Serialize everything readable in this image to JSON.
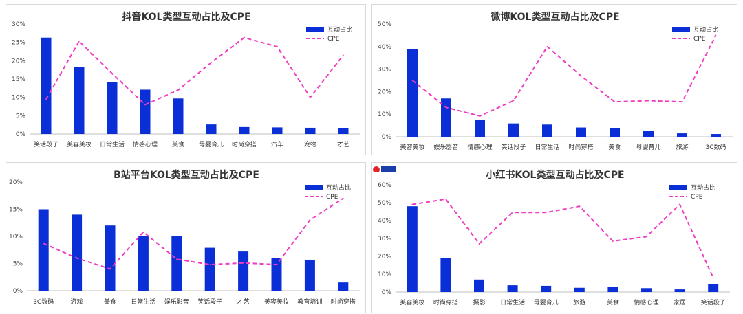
{
  "colors": {
    "bar": "#0a2fd6",
    "line": "#f03cc0",
    "axis": "#bfbfbf"
  },
  "legend": {
    "bar_label": "互动占比",
    "line_label": "CPE"
  },
  "chart_data": [
    {
      "type": "bar",
      "title": "抖音KOL类型互动占比及CPE",
      "categories": [
        "笑话段子",
        "美容美妆",
        "日常生活",
        "情感心理",
        "美食",
        "母婴育儿",
        "时尚穿搭",
        "汽车",
        "宠物",
        "才艺"
      ],
      "yticks": [
        "0%",
        "5%",
        "10%",
        "15%",
        "20%",
        "25%",
        "30%"
      ],
      "ylim": [
        0,
        30
      ],
      "series": [
        {
          "name": "互动占比",
          "type": "bar",
          "values": [
            26.3,
            18.3,
            14.2,
            12.1,
            9.7,
            2.6,
            1.9,
            1.8,
            1.7,
            1.6
          ]
        },
        {
          "name": "CPE",
          "type": "line",
          "values": [
            9.5,
            25.3,
            16.5,
            8.0,
            12.0,
            19.5,
            26.3,
            23.8,
            10.0,
            21.5
          ]
        }
      ]
    },
    {
      "type": "bar",
      "title": "微博KOL类型互动占比及CPE",
      "categories": [
        "美容美妆",
        "娱乐影音",
        "情感心理",
        "笑话段子",
        "日常生活",
        "时尚穿搭",
        "美食",
        "母婴育儿",
        "旅游",
        "3C数码"
      ],
      "yticks": [
        "0%",
        "10%",
        "20%",
        "30%",
        "40%",
        "50%"
      ],
      "ylim": [
        0,
        50
      ],
      "series": [
        {
          "name": "互动占比",
          "type": "bar",
          "values": [
            39.0,
            17.0,
            7.6,
            5.9,
            5.4,
            4.1,
            3.9,
            2.5,
            1.5,
            1.2
          ]
        },
        {
          "name": "CPE",
          "type": "line",
          "values": [
            25.0,
            13.0,
            9.2,
            16.0,
            40.0,
            27.0,
            15.5,
            16.0,
            15.5,
            45.0
          ]
        }
      ]
    },
    {
      "type": "bar",
      "title": "B站平台KOL类型互动占比及CPE",
      "categories": [
        "3C数码",
        "游戏",
        "美食",
        "日常生活",
        "娱乐影音",
        "笑话段子",
        "才艺",
        "美容美妆",
        "教育培训",
        "时尚穿搭"
      ],
      "yticks": [
        "0%",
        "5%",
        "10%",
        "15%",
        "20%"
      ],
      "ylim": [
        0,
        20
      ],
      "series": [
        {
          "name": "互动占比",
          "type": "bar",
          "values": [
            15.0,
            14.0,
            12.0,
            10.0,
            10.0,
            7.9,
            7.2,
            6.0,
            5.7,
            1.5
          ]
        },
        {
          "name": "CPE",
          "type": "line",
          "values": [
            8.7,
            6.0,
            4.0,
            10.8,
            5.8,
            4.8,
            5.1,
            4.8,
            13.0,
            17.0
          ]
        }
      ]
    },
    {
      "type": "bar",
      "title": "小红书KOL类型互动占比及CPE",
      "categories": [
        "美容美妆",
        "时尚穿搭",
        "摄影",
        "日常生活",
        "母婴育儿",
        "旅游",
        "美食",
        "情感心理",
        "家居",
        "笑话段子"
      ],
      "yticks": [
        "0%",
        "10%",
        "20%",
        "30%",
        "40%",
        "50%",
        "60%"
      ],
      "ylim": [
        0,
        60
      ],
      "series": [
        {
          "name": "互动占比",
          "type": "bar",
          "values": [
            48.0,
            19.0,
            7.0,
            3.8,
            3.5,
            2.4,
            3.0,
            2.2,
            1.5,
            4.5
          ]
        },
        {
          "name": "CPE",
          "type": "line",
          "values": [
            49.0,
            52.0,
            27.0,
            44.5,
            44.5,
            48.0,
            28.5,
            31.0,
            49.0,
            8.0
          ]
        }
      ]
    }
  ]
}
